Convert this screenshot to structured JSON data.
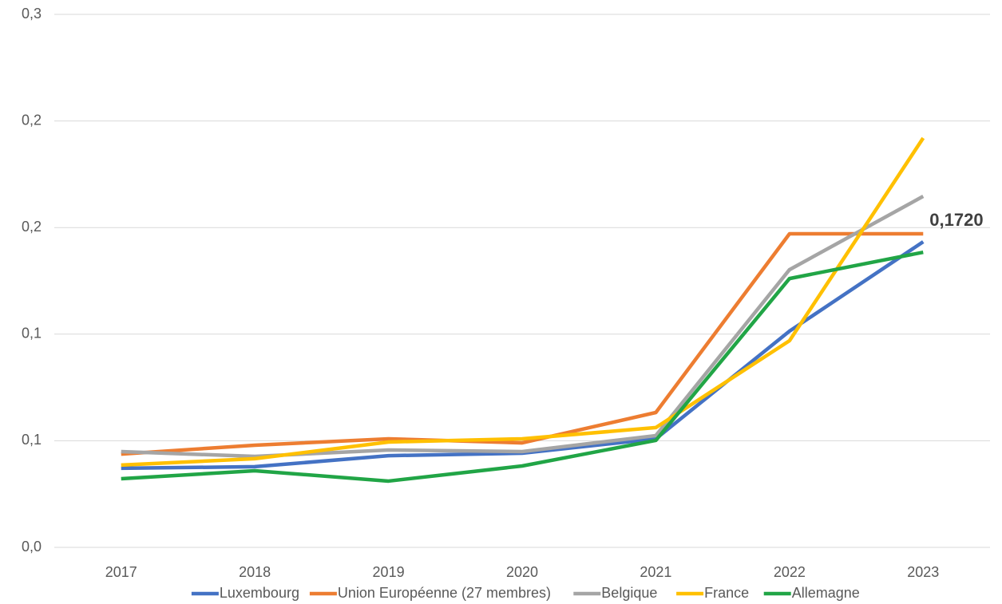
{
  "chart_data": {
    "type": "line",
    "categories": [
      "2017",
      "2018",
      "2019",
      "2020",
      "2021",
      "2022",
      "2023"
    ],
    "series": [
      {
        "name": "Luxembourg",
        "color": "#4472c4",
        "values": [
          0.0445,
          0.0454,
          0.0516,
          0.053,
          0.0611,
          0.1217,
          0.172
        ],
        "value_labels": [
          null,
          null,
          null,
          null,
          null,
          null,
          "0,1720"
        ]
      },
      {
        "name": "Union Européenne (27 membres)",
        "color": "#ed7d31",
        "values": [
          0.0525,
          0.0575,
          0.0611,
          0.0588,
          0.0759,
          0.1765,
          0.1765
        ]
      },
      {
        "name": "Belgique",
        "color": "#a5a5a5",
        "values": [
          0.0539,
          0.0512,
          0.0548,
          0.0539,
          0.0629,
          0.1563,
          0.1976
        ]
      },
      {
        "name": "France",
        "color": "#ffc000",
        "values": [
          0.0463,
          0.0499,
          0.0593,
          0.0611,
          0.0674,
          0.1163,
          0.2304
        ]
      },
      {
        "name": "Allemagne",
        "color": "#21a546",
        "values": [
          0.0386,
          0.0431,
          0.0373,
          0.0458,
          0.0602,
          0.1513,
          0.1661
        ]
      }
    ],
    "ylim": [
      0,
      0.3
    ],
    "yticks": [
      {
        "value": 0,
        "label": "0,0"
      },
      {
        "value": 0.06,
        "label": "0,1"
      },
      {
        "value": 0.12,
        "label": "0,1"
      },
      {
        "value": 0.18,
        "label": "0,2"
      },
      {
        "value": 0.24,
        "label": "0,2"
      },
      {
        "value": 0.3,
        "label": "0,3"
      }
    ],
    "grid": true,
    "legend": "bottom"
  }
}
